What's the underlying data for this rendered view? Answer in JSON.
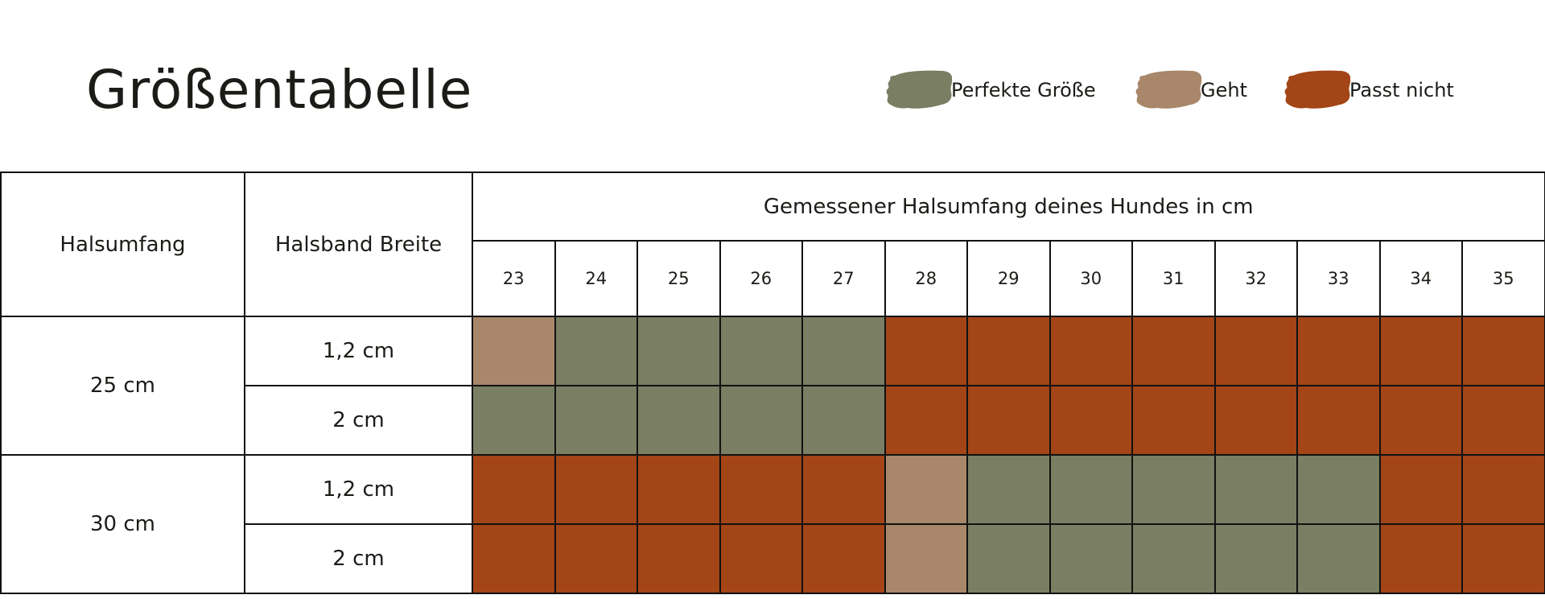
{
  "title": "Größentabelle",
  "legend": [
    {
      "label": "Perfekte Größe",
      "color": "#7a7e62",
      "key": "perfect"
    },
    {
      "label": "Geht",
      "color": "#a8876a",
      "key": "ok"
    },
    {
      "label": "Passt nicht",
      "color": "#a34516",
      "key": "no"
    }
  ],
  "colors": {
    "perfect": "#7a7e62",
    "ok": "#a8876a",
    "no": "#a34516"
  },
  "table": {
    "col_neck": "Halsumfang",
    "col_width": "Halsband Breite",
    "group_header": "Gemessener Halsumfang deines Hundes in cm",
    "sizes": [
      "23",
      "24",
      "25",
      "26",
      "27",
      "28",
      "29",
      "30",
      "31",
      "32",
      "33",
      "34",
      "35"
    ],
    "groups": [
      {
        "neck": "25 cm",
        "rows": [
          {
            "width": "1,2 cm",
            "fit": [
              "ok",
              "perfect",
              "perfect",
              "perfect",
              "perfect",
              "no",
              "no",
              "no",
              "no",
              "no",
              "no",
              "no",
              "no"
            ]
          },
          {
            "width": "2 cm",
            "fit": [
              "perfect",
              "perfect",
              "perfect",
              "perfect",
              "perfect",
              "no",
              "no",
              "no",
              "no",
              "no",
              "no",
              "no",
              "no"
            ]
          }
        ]
      },
      {
        "neck": "30 cm",
        "rows": [
          {
            "width": "1,2 cm",
            "fit": [
              "no",
              "no",
              "no",
              "no",
              "no",
              "ok",
              "perfect",
              "perfect",
              "perfect",
              "perfect",
              "perfect",
              "no",
              "no"
            ]
          },
          {
            "width": "2 cm",
            "fit": [
              "no",
              "no",
              "no",
              "no",
              "no",
              "ok",
              "perfect",
              "perfect",
              "perfect",
              "perfect",
              "perfect",
              "no",
              "no"
            ]
          }
        ]
      }
    ]
  }
}
